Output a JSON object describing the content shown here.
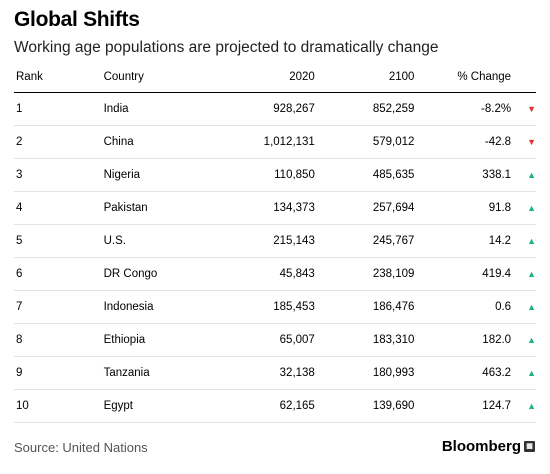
{
  "chart_data": {
    "type": "table",
    "title": "Global Shifts",
    "subtitle": "Working age populations are projected to dramatically change",
    "columns": [
      "Rank",
      "Country",
      "2020",
      "2100",
      "% Change"
    ],
    "rows": [
      {
        "rank": "1",
        "country": "India",
        "y2020": "928,267",
        "y2100": "852,259",
        "change": "-8.2%",
        "direction": "down"
      },
      {
        "rank": "2",
        "country": "China",
        "y2020": "1,012,131",
        "y2100": "579,012",
        "change": "-42.8",
        "direction": "down"
      },
      {
        "rank": "3",
        "country": "Nigeria",
        "y2020": "110,850",
        "y2100": "485,635",
        "change": "338.1",
        "direction": "up"
      },
      {
        "rank": "4",
        "country": "Pakistan",
        "y2020": "134,373",
        "y2100": "257,694",
        "change": "91.8",
        "direction": "up"
      },
      {
        "rank": "5",
        "country": "U.S.",
        "y2020": "215,143",
        "y2100": "245,767",
        "change": "14.2",
        "direction": "up"
      },
      {
        "rank": "6",
        "country": "DR Congo",
        "y2020": "45,843",
        "y2100": "238,109",
        "change": "419.4",
        "direction": "up"
      },
      {
        "rank": "7",
        "country": "Indonesia",
        "y2020": "185,453",
        "y2100": "186,476",
        "change": "0.6",
        "direction": "up"
      },
      {
        "rank": "8",
        "country": "Ethiopia",
        "y2020": "65,007",
        "y2100": "183,310",
        "change": "182.0",
        "direction": "up"
      },
      {
        "rank": "9",
        "country": "Tanzania",
        "y2020": "32,138",
        "y2100": "180,993",
        "change": "463.2",
        "direction": "up"
      },
      {
        "rank": "10",
        "country": "Egypt",
        "y2020": "62,165",
        "y2100": "139,690",
        "change": "124.7",
        "direction": "up"
      }
    ],
    "source": "Source: United Nations",
    "brand": "Bloomberg"
  },
  "colors": {
    "up": "#1bb28a",
    "down": "#e8302b"
  },
  "icons": {
    "up": "triangle-up-icon",
    "down": "triangle-down-icon"
  }
}
